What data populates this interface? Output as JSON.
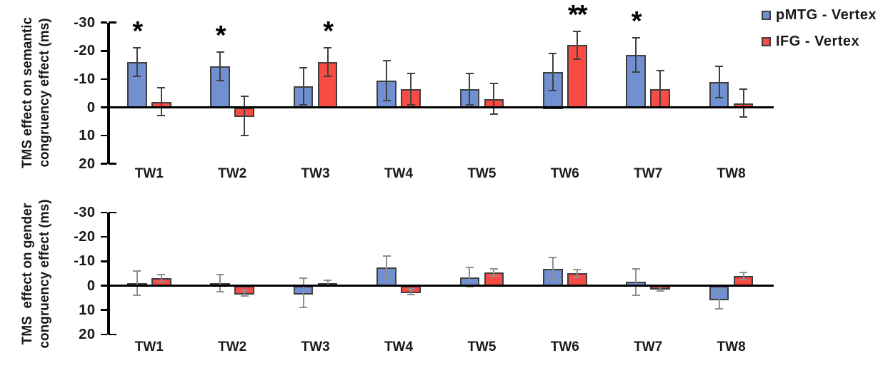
{
  "page": {
    "background": "#ffffff",
    "text_color": "#1a1a1a"
  },
  "legend": {
    "position": "top-right",
    "items": [
      {
        "label": "pMTG - Vertex",
        "color": "#7090D2"
      },
      {
        "label": "IFG - Vertex",
        "color": "#F84B44"
      }
    ]
  },
  "colors": {
    "pmtg_blue": "#7090D2",
    "ifg_red": "#F84B44",
    "bar_border": "#3F3F3F",
    "axis": "#000000",
    "error_bar_top_chart": "#404040",
    "error_bar_bottom_chart": "#8f8f8f"
  },
  "chart_data": [
    {
      "id": "semantic",
      "type": "bar",
      "title": "",
      "ylabel": "TMS effect on semantic congruency effect (ms)",
      "ylabel_lines": [
        "TMS effect on semantic",
        "congruency effect (ms)"
      ],
      "xlabel": "",
      "categories": [
        "TW1",
        "TW2",
        "TW3",
        "TW4",
        "TW5",
        "TW6",
        "TW7",
        "TW8"
      ],
      "y_axis": {
        "ticks": [
          -30,
          -20,
          -10,
          0,
          10,
          20
        ],
        "range": [
          -30,
          20
        ],
        "inverted": true,
        "unit": "ms",
        "grid": false
      },
      "series": [
        {
          "name": "pMTG - Vertex",
          "color": "#7090D2",
          "values": [
            -16,
            -14.5,
            -7.5,
            -9.5,
            -6.5,
            -12.5,
            -18.5,
            -9
          ],
          "errors": [
            5,
            5,
            6.5,
            7,
            5.5,
            6.5,
            6,
            5.5
          ]
        },
        {
          "name": "IFG - Vertex",
          "color": "#F84B44",
          "values": [
            -2,
            3,
            -16,
            -6.5,
            -3,
            -22,
            -6.5,
            -1.5
          ],
          "errors": [
            5,
            7,
            5,
            5.5,
            5.5,
            5,
            6.5,
            5
          ]
        }
      ],
      "annotations": [
        {
          "category": "TW1",
          "series": 0,
          "text": "*"
        },
        {
          "category": "TW2",
          "series": 0,
          "text": "*"
        },
        {
          "category": "TW3",
          "series": 1,
          "text": "*"
        },
        {
          "category": "TW6",
          "series": 1,
          "text": "**"
        },
        {
          "category": "TW7",
          "series": 0,
          "text": "*"
        }
      ]
    },
    {
      "id": "gender",
      "type": "bar",
      "title": "",
      "ylabel": "TMS  effect on gender congruency effect (ms)",
      "ylabel_lines": [
        "TMS  effect on gender",
        "congruency effect (ms)"
      ],
      "xlabel": "",
      "categories": [
        "TW1",
        "TW2",
        "TW3",
        "TW4",
        "TW5",
        "TW6",
        "TW7",
        "TW8"
      ],
      "y_axis": {
        "ticks": [
          -30,
          -20,
          -10,
          0,
          10,
          20
        ],
        "range": [
          -30,
          20
        ],
        "inverted": true,
        "unit": "ms",
        "grid": false
      },
      "series": [
        {
          "name": "pMTG - Vertex",
          "color": "#7090D2",
          "values": [
            -1,
            -1,
            3,
            -7.5,
            -3.5,
            -7,
            -1.5,
            5.5
          ],
          "errors": [
            5,
            3.5,
            6,
            4.5,
            4,
            4.5,
            5.5,
            4
          ]
        },
        {
          "name": "IFG - Vertex",
          "color": "#F84B44",
          "values": [
            -3,
            3,
            -1,
            2.5,
            -5.5,
            -5,
            1,
            -4
          ],
          "errors": [
            1.5,
            1.2,
            1.2,
            1.2,
            1.5,
            1.5,
            1.2,
            1.5
          ]
        }
      ],
      "annotations": []
    }
  ]
}
